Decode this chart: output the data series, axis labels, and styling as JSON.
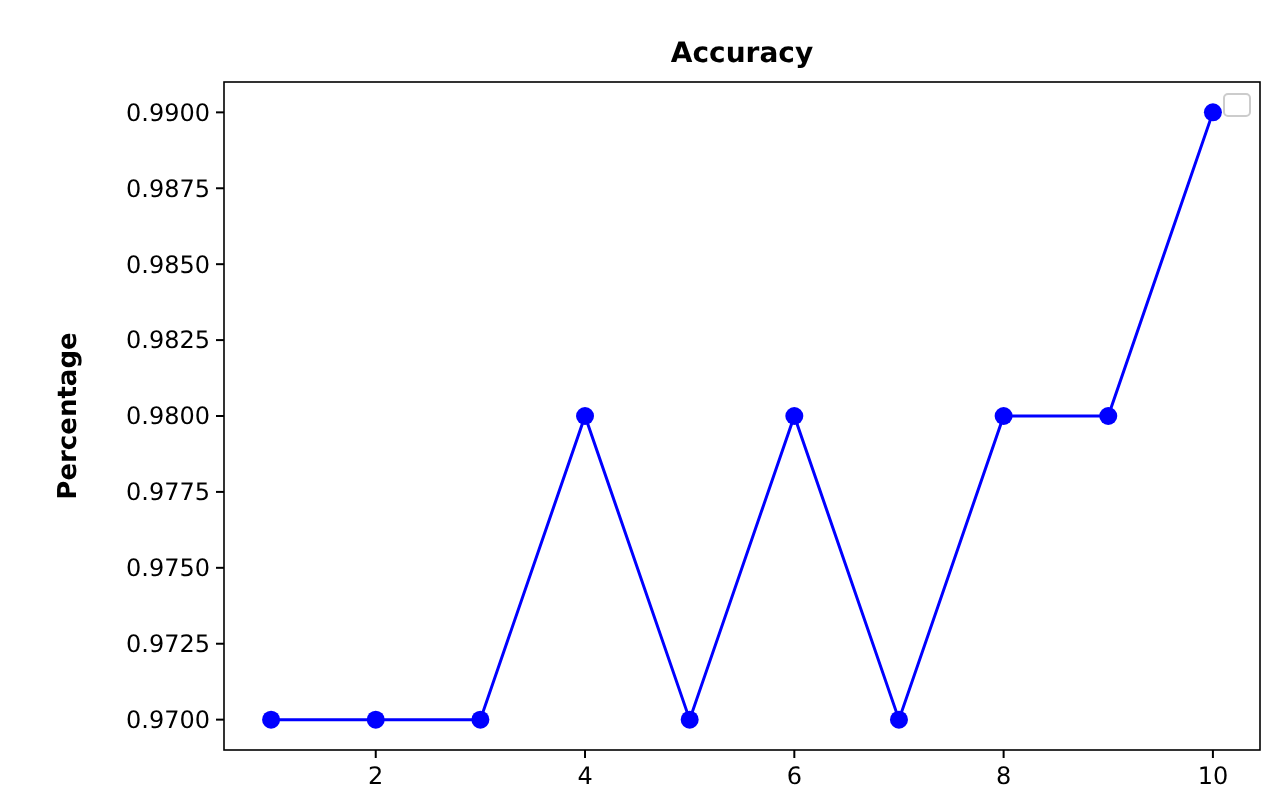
{
  "chart_data": {
    "type": "line",
    "title": "Accuracy",
    "ylabel": "Percentage",
    "x": [
      1,
      2,
      3,
      4,
      5,
      6,
      7,
      8,
      9,
      10
    ],
    "series": [
      {
        "color": "#0000ff",
        "values": [
          0.97,
          0.97,
          0.97,
          0.98,
          0.97,
          0.98,
          0.97,
          0.98,
          0.98,
          0.99
        ]
      }
    ],
    "xlim": [
      0.55,
      10.45
    ],
    "xticks": [
      2,
      4,
      6,
      8,
      10
    ],
    "ylim": [
      0.969,
      0.991
    ],
    "yticks": [
      {
        "value": 0.97,
        "label": "0.9700"
      },
      {
        "value": 0.9725,
        "label": "0.9725"
      },
      {
        "value": 0.975,
        "label": "0.9750"
      },
      {
        "value": 0.9775,
        "label": "0.9775"
      },
      {
        "value": 0.98,
        "label": "0.9800"
      },
      {
        "value": 0.9825,
        "label": "0.9825"
      },
      {
        "value": 0.985,
        "label": "0.9850"
      },
      {
        "value": 0.9875,
        "label": "0.9875"
      },
      {
        "value": 0.99,
        "label": "0.9900"
      }
    ],
    "marker": "circle",
    "grid": false
  }
}
